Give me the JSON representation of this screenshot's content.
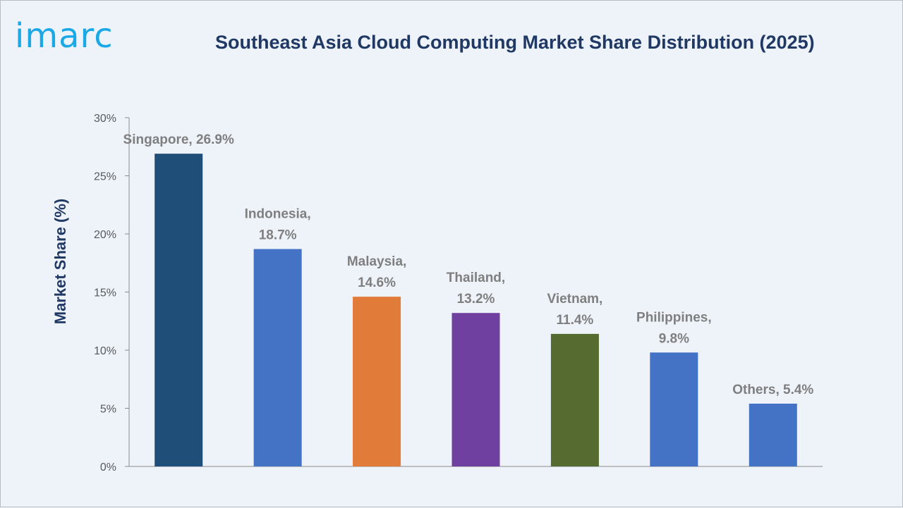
{
  "logo_text": "imarc",
  "chart_data": {
    "type": "bar",
    "title": "Southeast Asia Cloud Computing Market Share Distribution (2025)",
    "ylabel": "Market Share (%)",
    "xlabel": "",
    "ylim": [
      0,
      30
    ],
    "yticks": [
      0,
      5,
      10,
      15,
      20,
      25,
      30
    ],
    "ytick_labels": [
      "0%",
      "5%",
      "10%",
      "15%",
      "20%",
      "25%",
      "30%"
    ],
    "categories": [
      "Singapore",
      "Indonesia",
      "Malaysia",
      "Thailand",
      "Vietnam",
      "Philippines",
      "Others"
    ],
    "values": [
      26.9,
      18.7,
      14.6,
      13.2,
      11.4,
      9.8,
      5.4
    ],
    "data_labels": [
      [
        "Singapore, 26.9%"
      ],
      [
        "Indonesia,",
        "18.7%"
      ],
      [
        "Malaysia,",
        "14.6%"
      ],
      [
        "Thailand,",
        "13.2%"
      ],
      [
        "Vietnam,",
        "11.4%"
      ],
      [
        "Philippines,",
        "9.8%"
      ],
      [
        "Others, 5.4%"
      ]
    ],
    "colors": [
      "#1f4e79",
      "#4472c4",
      "#e07b39",
      "#7040a0",
      "#556b2f",
      "#4472c4",
      "#4472c4"
    ],
    "grid": false,
    "legend": "none"
  }
}
